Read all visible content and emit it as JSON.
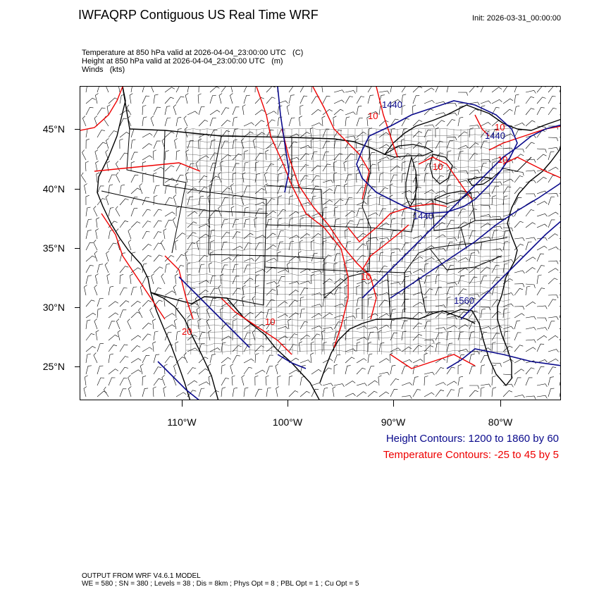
{
  "header": {
    "title": "IWFAQRP Contiguous US Real Time WRF",
    "init": "Init: 2026-03-31_00:00:00"
  },
  "fields": [
    {
      "name": "Temperature at 850 hPa valid at 2026-04-04_23:00:00 UTC",
      "units": "(C)"
    },
    {
      "name": "Height at 850 hPa valid at 2026-04-04_23:00:00 UTC",
      "units": "(m)"
    },
    {
      "name": "Winds",
      "units": "(kts)"
    }
  ],
  "map": {
    "projection": "Lambert conformal (CONUS)",
    "lat_labels": [
      "45°N",
      "40°N",
      "35°N",
      "30°N",
      "25°N"
    ],
    "lon_labels": [
      "110°W",
      "100°W",
      "90°W",
      "80°W"
    ],
    "height_contour_labels": [
      "1440",
      "1440",
      "1440",
      "1560"
    ],
    "temperature_contour_labels": [
      "10",
      "10",
      "10",
      "10",
      "10",
      "20",
      "10"
    ],
    "colors": {
      "height": "#0a0a8c",
      "temperature": "#ee0000",
      "boundaries": "#000000",
      "wind_barbs": "#000000"
    }
  },
  "legend": {
    "height": "Height Contours: 1200 to 1860 by 60",
    "temperature": "Temperature Contours: -25 to 45 by 5"
  },
  "footer": {
    "line1": "OUTPUT FROM WRF V4.6.1 MODEL",
    "line2": "WE = 580 ; SN = 380 ; Levels = 38 ; Dis = 8km ; Phys Opt = 8 ; PBL Opt = 1 ; Cu Opt = 5"
  }
}
